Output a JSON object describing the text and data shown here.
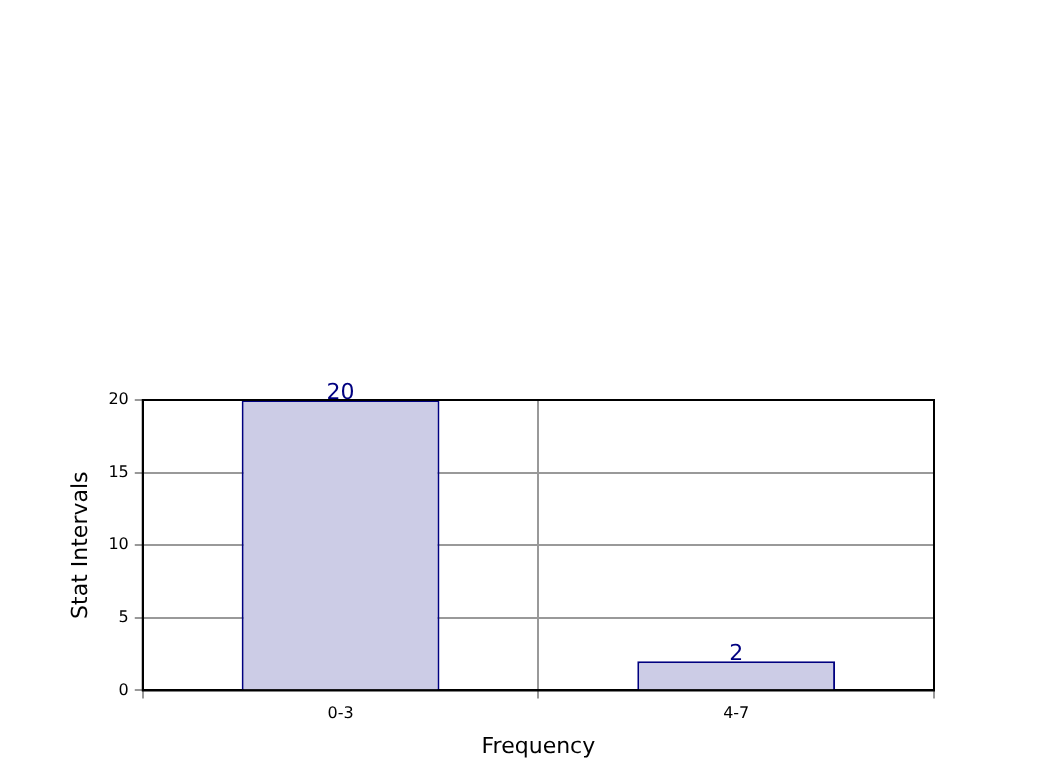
{
  "chart_data": {
    "type": "bar",
    "xlabel": "Frequency",
    "ylabel": "Stat Intervals",
    "categories": [
      "0-3",
      "4-7"
    ],
    "values": [
      20,
      2
    ],
    "color": "#ccccE6",
    "ylim": [
      0,
      20
    ],
    "yticks": [
      0,
      5,
      10,
      15,
      20
    ],
    "grid": true,
    "data_labels": true
  }
}
